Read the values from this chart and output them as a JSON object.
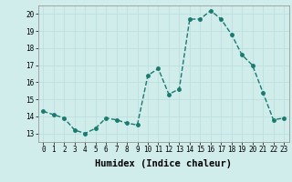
{
  "x": [
    0,
    1,
    2,
    3,
    4,
    5,
    6,
    7,
    8,
    9,
    10,
    11,
    12,
    13,
    14,
    15,
    16,
    17,
    18,
    19,
    20,
    21,
    22,
    23
  ],
  "y": [
    14.3,
    14.1,
    13.9,
    13.2,
    13.0,
    13.3,
    13.9,
    13.8,
    13.6,
    13.5,
    16.4,
    16.8,
    15.3,
    15.6,
    19.7,
    19.7,
    20.2,
    19.7,
    18.8,
    17.6,
    17.0,
    15.4,
    13.8,
    13.9
  ],
  "line_color": "#1a7a6e",
  "marker_color": "#1a7a6e",
  "bg_color": "#d0eceb",
  "grid_color": "#b8dedd",
  "xlabel": "Humidex (Indice chaleur)",
  "xlim": [
    -0.5,
    23.5
  ],
  "ylim": [
    12.5,
    20.5
  ],
  "yticks": [
    13,
    14,
    15,
    16,
    17,
    18,
    19,
    20
  ],
  "xticks": [
    0,
    1,
    2,
    3,
    4,
    5,
    6,
    7,
    8,
    9,
    10,
    11,
    12,
    13,
    14,
    15,
    16,
    17,
    18,
    19,
    20,
    21,
    22,
    23
  ],
  "tick_label_fontsize": 5.5,
  "xlabel_fontsize": 7.5,
  "marker_size": 2.5,
  "line_width": 1.0
}
